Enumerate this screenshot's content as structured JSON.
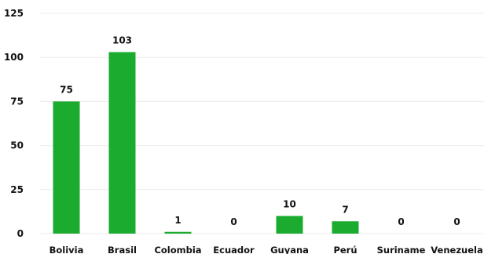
{
  "chart_data": {
    "type": "bar",
    "title": "",
    "xlabel": "",
    "ylabel": "",
    "categories": [
      "Bolivia",
      "Brasil",
      "Colombia",
      "Ecuador",
      "Guyana",
      "Perú",
      "Suriname",
      "Venezuela"
    ],
    "values": [
      75,
      103,
      1,
      0,
      10,
      7,
      0,
      0
    ],
    "ylim": [
      0,
      125
    ],
    "yticks": [
      0,
      25,
      50,
      75,
      100,
      125
    ],
    "grid": true,
    "legend": "none",
    "colors": {
      "bar": "#1aab2f",
      "grid": "#ececec",
      "text": "#111111"
    }
  }
}
